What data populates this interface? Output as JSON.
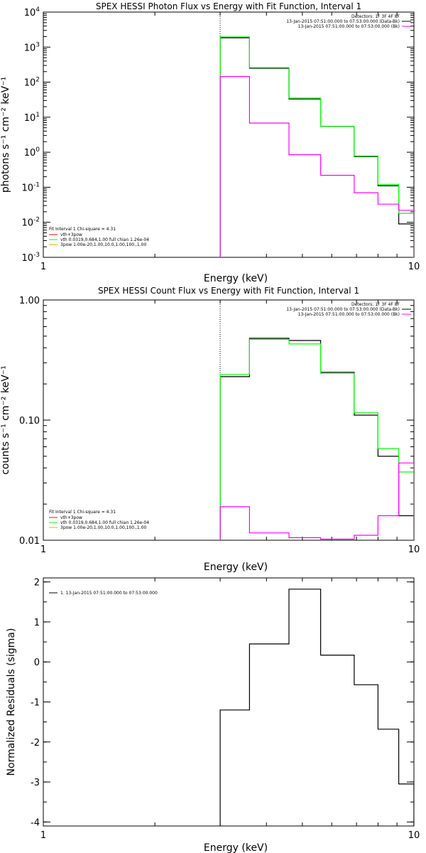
{
  "chart_data": [
    {
      "type": "line",
      "title": "SPEX HESSI Photon Flux vs Energy with Fit Function, Interval 1",
      "xlabel": "Energy (keV)",
      "ylabel": "photons s⁻¹ cm⁻² keV⁻¹",
      "xscale": "log",
      "yscale": "log",
      "xlim": [
        1,
        10
      ],
      "ylim": [
        0.001,
        10000
      ],
      "xticks": [
        {
          "v": 1,
          "label": "1"
        },
        {
          "v": 10,
          "label": "10"
        }
      ],
      "yticks": [
        {
          "v": 0.001,
          "b": "10",
          "e": "-3"
        },
        {
          "v": 0.01,
          "b": "10",
          "e": "-2"
        },
        {
          "v": 0.1,
          "b": "10",
          "e": "-1"
        },
        {
          "v": 1,
          "b": "10",
          "e": "0"
        },
        {
          "v": 10,
          "b": "10",
          "e": "1"
        },
        {
          "v": 100,
          "b": "10",
          "e": "2"
        },
        {
          "v": 1000,
          "b": "10",
          "e": "3"
        },
        {
          "v": 10000,
          "b": "10",
          "e": "4"
        }
      ],
      "vline": {
        "x": 3.0,
        "style": "dotted"
      },
      "grid": false,
      "legend_right": {
        "position": "top-right",
        "lines": [
          {
            "text": "Detectors: 1F 3F 4F 8F",
            "color": null
          },
          {
            "text": "13-Jan-2015 07:51:00.000 to 07:53:00.000 (Data-Bk)",
            "color": "#000000"
          },
          {
            "text": "13-Jan-2015 07:51:00.000 to 07:53:00.000 (Bk)",
            "color": "#ff00ff"
          }
        ]
      },
      "legend_left": {
        "position": "bottom-left",
        "header": "Fit Interval 1    Chi-square = 4.31",
        "lines": [
          {
            "text": "vth+3pow",
            "color": "#ff0000"
          },
          {
            "text": "vth 0.0319,0.684,1.00  full chian 1.26e-04",
            "color": "#00ff00"
          },
          {
            "text": "3pow 1.00e-20,1.00,10.0,1.00,100.,1.00",
            "color": "#ffa500"
          }
        ]
      },
      "edges": [
        3.0,
        3.6,
        4.6,
        5.6,
        6.9,
        8.0,
        9.1,
        10.0
      ],
      "series": [
        {
          "color": "#000000",
          "values": [
            1850,
            250,
            33,
            5.5,
            0.75,
            0.11,
            0.009
          ],
          "role": "data"
        },
        {
          "color": "#00ff00",
          "values": [
            1950,
            260,
            35,
            5.5,
            0.78,
            0.12,
            0.018
          ],
          "role": "model"
        },
        {
          "color": "#ff00ff",
          "values": [
            145,
            6.8,
            0.85,
            0.22,
            0.07,
            0.033,
            0.022
          ],
          "role": "background"
        }
      ]
    },
    {
      "type": "line",
      "title": "SPEX HESSI Count Flux vs Energy with Fit Function, Interval 1",
      "xlabel": "Energy (keV)",
      "ylabel": "counts s⁻¹ cm⁻² keV⁻¹",
      "xscale": "log",
      "yscale": "log",
      "xlim": [
        1,
        10
      ],
      "ylim": [
        0.01,
        1.0
      ],
      "xticks": [
        {
          "v": 1,
          "label": "1"
        },
        {
          "v": 10,
          "label": "10"
        }
      ],
      "yticks": [
        {
          "v": 0.01,
          "label": "0.01"
        },
        {
          "v": 0.1,
          "label": "0.10"
        },
        {
          "v": 1.0,
          "label": "1.00"
        }
      ],
      "vline": {
        "x": 3.0,
        "style": "dotted"
      },
      "grid": false,
      "legend_right": {
        "position": "top-right",
        "lines": [
          {
            "text": "Detectors: 1F 3F 4F 8F",
            "color": null
          },
          {
            "text": "13-Jan-2015 07:51:00.000 to 07:53:00.000 (Data-Bk)",
            "color": "#000000"
          },
          {
            "text": "13-Jan-2015 07:51:00.000 to 07:53:00.000 (Bk)",
            "color": "#ff00ff"
          }
        ]
      },
      "legend_left": {
        "position": "bottom-left",
        "header": "Fit Interval 1    Chi-square = 4.31",
        "lines": [
          {
            "text": "vth+3pow",
            "color": "#ff0000"
          },
          {
            "text": "vth 0.0319,0.684,1.00  full chian 1.26e-04",
            "color": "#00ff00"
          },
          {
            "text": "3pow 1.00e-20,1.00,10.0,1.00,100.,1.00",
            "color": "#ffa500"
          }
        ]
      },
      "edges": [
        3.0,
        3.6,
        4.6,
        5.6,
        6.9,
        8.0,
        9.1,
        10.0
      ],
      "series": [
        {
          "color": "#000000",
          "values": [
            0.23,
            0.48,
            0.46,
            0.25,
            0.11,
            0.05,
            0.016
          ],
          "role": "data"
        },
        {
          "color": "#00ff00",
          "values": [
            0.24,
            0.47,
            0.43,
            0.245,
            0.115,
            0.058,
            0.037
          ],
          "role": "model"
        },
        {
          "color": "#ff00ff",
          "values": [
            0.019,
            0.0115,
            0.0105,
            0.0102,
            0.011,
            0.016,
            0.044
          ],
          "role": "background"
        }
      ]
    },
    {
      "type": "line",
      "title": "",
      "xlabel": "Energy (keV)",
      "ylabel": "Normalized Residuals (sigma)",
      "xscale": "log",
      "yscale": "linear",
      "xlim": [
        1,
        10
      ],
      "ylim": [
        -4.1,
        2.1
      ],
      "xticks": [
        {
          "v": 1,
          "label": "1"
        },
        {
          "v": 10,
          "label": "10"
        }
      ],
      "yticks": [
        {
          "v": -4,
          "label": "-4"
        },
        {
          "v": -3,
          "label": "-3"
        },
        {
          "v": -2,
          "label": "-2"
        },
        {
          "v": -1,
          "label": "-1"
        },
        {
          "v": 0,
          "label": "0"
        },
        {
          "v": 1,
          "label": "1"
        },
        {
          "v": 2,
          "label": "2"
        }
      ],
      "grid": false,
      "legend_left": {
        "position": "top-left",
        "lines": [
          {
            "text": "1. 13-Jan-2015 07:51:00.000 to 07:53:00.000",
            "color": "#000000"
          }
        ]
      },
      "edges": [
        3.0,
        3.6,
        4.6,
        5.6,
        6.9,
        8.0,
        9.1,
        10.0
      ],
      "series": [
        {
          "color": "#000000",
          "values": [
            -1.2,
            0.45,
            1.82,
            0.17,
            -0.57,
            -1.68,
            -3.05
          ],
          "role": "residual"
        }
      ]
    }
  ]
}
